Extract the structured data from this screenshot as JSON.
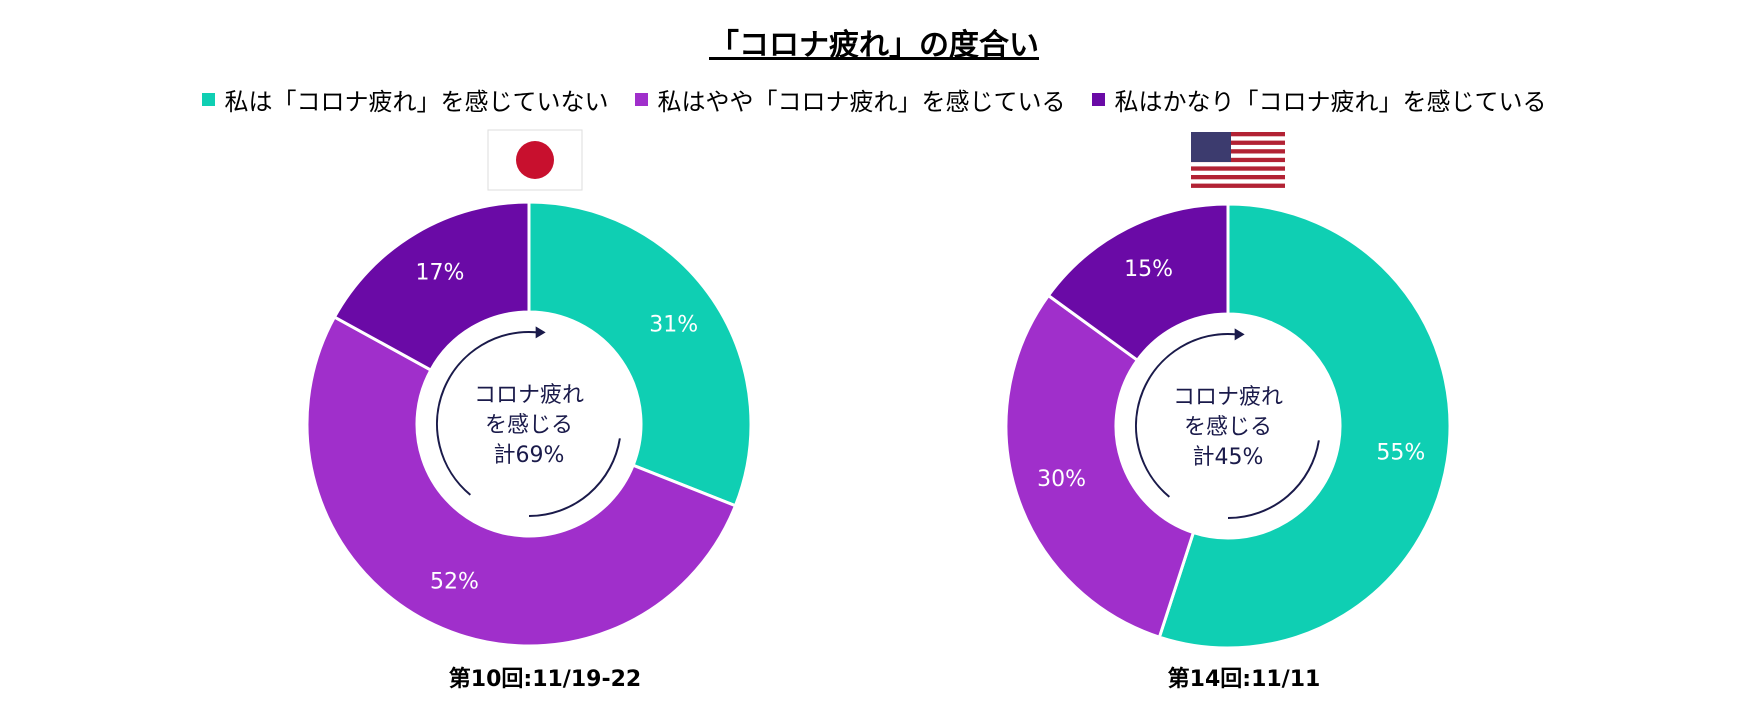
{
  "title": "「コロナ疲れ」の度合い",
  "chart_data": [
    {
      "type": "pie",
      "subtitle": "第10回:11/19-22",
      "categories": [
        "私は「コロナ疲れ」を感じていない",
        "私はやや「コロナ疲れ」を感じている",
        "私はかなり「コロナ疲れ」を感じている"
      ],
      "values": [
        31,
        52,
        17
      ],
      "value_labels": [
        "31%",
        "52%",
        "17%"
      ],
      "colors": [
        "#0fcfb3",
        "#a02fcb",
        "#6a0aa6"
      ],
      "center_text": [
        "コロナ疲れ",
        "を感じる",
        "計69%"
      ]
    },
    {
      "type": "pie",
      "subtitle": "第14回:11/11",
      "categories": [
        "私は「コロナ疲れ」を感じていない",
        "私はやや「コロナ疲れ」を感じている",
        "私はかなり「コロナ疲れ」を感じている"
      ],
      "values": [
        55,
        30,
        15
      ],
      "value_labels": [
        "55%",
        "30%",
        "15%"
      ],
      "colors": [
        "#0fcfb3",
        "#a02fcb",
        "#6a0aa6"
      ],
      "center_text": [
        "コロナ疲れ",
        "を感じる",
        "計45%"
      ]
    }
  ]
}
